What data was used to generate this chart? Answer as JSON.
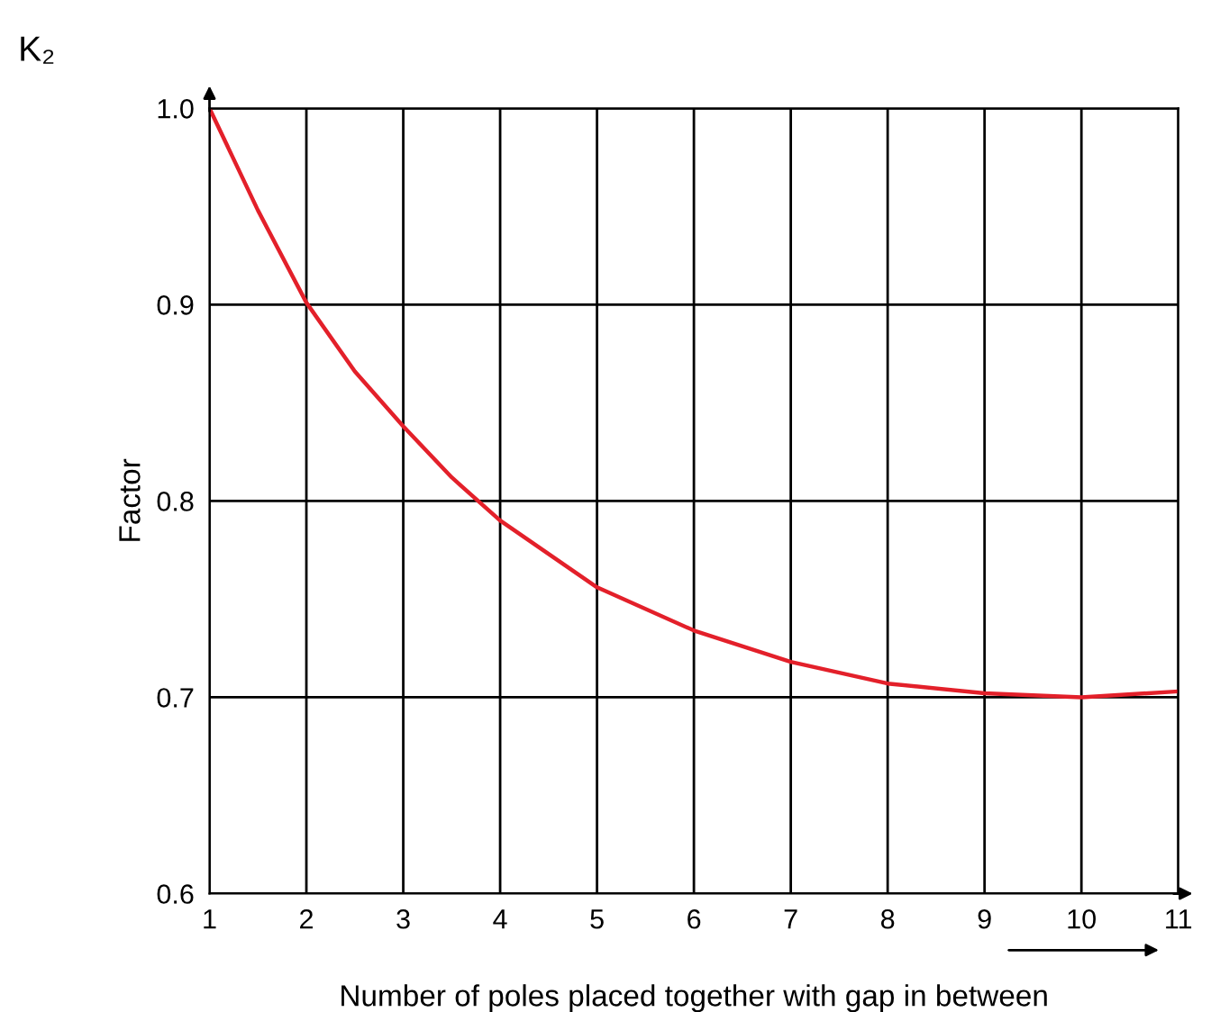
{
  "chart_data": {
    "type": "line",
    "xlabel": "Number of poles placed together with gap in between",
    "ylabel": "Factor",
    "annotations": [
      "K₂"
    ],
    "x": [
      1,
      1.5,
      2,
      2.5,
      3,
      3.5,
      4,
      5,
      6,
      7,
      8,
      9,
      10,
      11
    ],
    "series": [
      {
        "color": "#e3202a",
        "values": [
          1.0,
          0.948,
          0.901,
          0.866,
          0.838,
          0.812,
          0.79,
          0.756,
          0.734,
          0.718,
          0.707,
          0.702,
          0.7,
          0.703
        ]
      }
    ],
    "xlim": [
      1,
      11
    ],
    "xticks": [
      1,
      2,
      3,
      4,
      5,
      6,
      7,
      8,
      9,
      10,
      11
    ],
    "ylim": [
      0.6,
      1.0
    ],
    "yticks": [
      {
        "value": 0.6,
        "label": "0.6"
      },
      {
        "value": 0.7,
        "label": "0.7"
      },
      {
        "value": 0.8,
        "label": "0.8"
      },
      {
        "value": 0.9,
        "label": "0.9"
      },
      {
        "value": 1.0,
        "label": "1.0"
      }
    ],
    "grid": true,
    "marker": "none",
    "line_style": "solid"
  }
}
